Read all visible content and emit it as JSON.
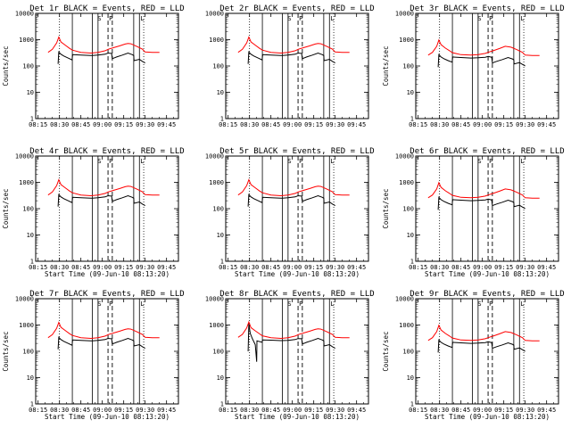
{
  "chart_data": [
    {
      "type": "line",
      "title": "Det 1r BLACK = Events, RED = LLD",
      "xlabel": "",
      "ylabel": "Counts/sec",
      "profile": 0
    },
    {
      "type": "line",
      "title": "Det 2r BLACK = Events, RED = LLD",
      "xlabel": "",
      "ylabel": "",
      "profile": 0
    },
    {
      "type": "line",
      "title": "Det 3r BLACK = Events, RED = LLD",
      "xlabel": "",
      "ylabel": "Counts/sec",
      "profile": 1
    },
    {
      "type": "line",
      "title": "Det 4r BLACK = Events, RED = LLD",
      "xlabel": "Start Time (09-Jun-10 08:13:20)",
      "ylabel": "Counts/sec",
      "profile": 0
    },
    {
      "type": "line",
      "title": "Det 5r BLACK = Events, RED = LLD",
      "xlabel": "Start Time (09-Jun-10 08:13:20)",
      "ylabel": "",
      "profile": 0
    },
    {
      "type": "line",
      "title": "Det 6r BLACK = Events, RED = LLD",
      "xlabel": "Start Time (09-Jun-10 08:13:20)",
      "ylabel": "Counts/sec",
      "profile": 1
    },
    {
      "type": "line",
      "title": "Det 7r BLACK = Events, RED = LLD",
      "xlabel": "Start Time (09-Jun-10 08:13:20)",
      "ylabel": "Counts/sec",
      "profile": 0
    },
    {
      "type": "line",
      "title": "Det 8r BLACK = Events, RED = LLD",
      "xlabel": "Start Time (09-Jun-10 08:13:20)",
      "ylabel": "",
      "profile": 2
    },
    {
      "type": "line",
      "title": "Det 9r BLACK = Events, RED = LLD",
      "xlabel": "Start Time (09-Jun-10 08:13:20)",
      "ylabel": "Counts/sec",
      "profile": 1
    }
  ],
  "shared": {
    "x_ticks": [
      "08:15",
      "08:30",
      "08:45",
      "09:00",
      "09:15",
      "09:30",
      "09:45"
    ],
    "x_tick_minutes": [
      15,
      30,
      45,
      60,
      75,
      90,
      105
    ],
    "x_range_minutes": [
      13.33,
      113.33
    ],
    "y_ticks": [
      "1",
      "10",
      "100",
      "1000",
      "10000"
    ],
    "y_tick_values": [
      1,
      10,
      100,
      1000,
      10000
    ],
    "y_range": [
      1,
      10000
    ],
    "y_scale": "log",
    "marker_letters": [
      "S",
      "P",
      "L"
    ],
    "dotted_lines_minutes": [
      30,
      89
    ],
    "solid_lines_minutes": [
      39,
      53,
      57,
      82,
      86
    ],
    "dashed_lines_minutes": [
      64,
      67
    ],
    "letter_positions_minutes": [
      58,
      66,
      88
    ],
    "series_colors": {
      "events": "#000000",
      "lld": "#ff0000"
    },
    "profiles": [
      {
        "lld": [
          [
            22,
            330
          ],
          [
            25,
            430
          ],
          [
            28,
            750
          ],
          [
            29.5,
            1250
          ],
          [
            31,
            820
          ],
          [
            34,
            620
          ],
          [
            37,
            470
          ],
          [
            39,
            400
          ],
          [
            45,
            330
          ],
          [
            52,
            310
          ],
          [
            57,
            330
          ],
          [
            62,
            380
          ],
          [
            64,
            430
          ],
          [
            68,
            500
          ],
          [
            72,
            580
          ],
          [
            76,
            680
          ],
          [
            78,
            720
          ],
          [
            80,
            700
          ],
          [
            84,
            560
          ],
          [
            88,
            440
          ],
          [
            90,
            340
          ],
          [
            95,
            330
          ],
          [
            100,
            330
          ]
        ],
        "events": [
          [
            29,
            120
          ],
          [
            29.5,
            340
          ],
          [
            31,
            280
          ],
          [
            33,
            240
          ],
          [
            36,
            200
          ],
          [
            38.8,
            170
          ],
          [
            39.2,
            270
          ],
          [
            45,
            260
          ],
          [
            52,
            250
          ],
          [
            53,
            250
          ],
          [
            57,
            260
          ],
          [
            62,
            280
          ],
          [
            64,
            310
          ],
          [
            66.5,
            300
          ],
          [
            67,
            190
          ],
          [
            70,
            220
          ],
          [
            74,
            260
          ],
          [
            78,
            310
          ],
          [
            81,
            270
          ],
          [
            82,
            250
          ],
          [
            82.2,
            160
          ],
          [
            86,
            180
          ],
          [
            88,
            150
          ],
          [
            90,
            130
          ]
        ]
      },
      {
        "lld": [
          [
            22,
            260
          ],
          [
            25,
            330
          ],
          [
            28,
            560
          ],
          [
            29.5,
            980
          ],
          [
            31,
            650
          ],
          [
            34,
            480
          ],
          [
            37,
            380
          ],
          [
            39,
            320
          ],
          [
            45,
            270
          ],
          [
            52,
            260
          ],
          [
            57,
            270
          ],
          [
            62,
            300
          ],
          [
            64,
            330
          ],
          [
            68,
            390
          ],
          [
            72,
            460
          ],
          [
            76,
            560
          ],
          [
            80,
            520
          ],
          [
            84,
            420
          ],
          [
            88,
            330
          ],
          [
            90,
            260
          ],
          [
            95,
            250
          ],
          [
            100,
            250
          ]
        ],
        "events": [
          [
            29,
            90
          ],
          [
            29.5,
            270
          ],
          [
            31,
            220
          ],
          [
            33,
            190
          ],
          [
            36,
            160
          ],
          [
            38.8,
            140
          ],
          [
            39.2,
            220
          ],
          [
            45,
            210
          ],
          [
            52,
            200
          ],
          [
            57,
            205
          ],
          [
            62,
            215
          ],
          [
            64,
            230
          ],
          [
            66.5,
            215
          ],
          [
            67,
            130
          ],
          [
            70,
            150
          ],
          [
            74,
            175
          ],
          [
            78,
            210
          ],
          [
            81,
            185
          ],
          [
            82,
            170
          ],
          [
            82.2,
            120
          ],
          [
            86,
            135
          ],
          [
            88,
            115
          ],
          [
            90,
            100
          ]
        ]
      },
      {
        "lld": [
          [
            22,
            340
          ],
          [
            25,
            440
          ],
          [
            28,
            770
          ],
          [
            29.5,
            1300
          ],
          [
            31,
            800
          ],
          [
            34,
            600
          ],
          [
            37,
            460
          ],
          [
            39,
            390
          ],
          [
            45,
            330
          ],
          [
            52,
            310
          ],
          [
            57,
            330
          ],
          [
            62,
            380
          ],
          [
            64,
            430
          ],
          [
            68,
            500
          ],
          [
            72,
            580
          ],
          [
            76,
            680
          ],
          [
            78,
            720
          ],
          [
            80,
            700
          ],
          [
            84,
            560
          ],
          [
            88,
            440
          ],
          [
            90,
            340
          ],
          [
            95,
            330
          ],
          [
            100,
            330
          ]
        ],
        "events": [
          [
            29,
            100
          ],
          [
            29.5,
            1100
          ],
          [
            30.5,
            480
          ],
          [
            32,
            300
          ],
          [
            34,
            180
          ],
          [
            35,
            40
          ],
          [
            35.2,
            250
          ],
          [
            38.8,
            220
          ],
          [
            39.2,
            270
          ],
          [
            45,
            265
          ],
          [
            52,
            255
          ],
          [
            57,
            262
          ],
          [
            62,
            280
          ],
          [
            64,
            305
          ],
          [
            66.5,
            300
          ],
          [
            67,
            190
          ],
          [
            70,
            220
          ],
          [
            74,
            260
          ],
          [
            78,
            310
          ],
          [
            81,
            270
          ],
          [
            82,
            250
          ],
          [
            82.2,
            160
          ],
          [
            86,
            180
          ],
          [
            88,
            150
          ],
          [
            90,
            130
          ]
        ]
      }
    ]
  }
}
